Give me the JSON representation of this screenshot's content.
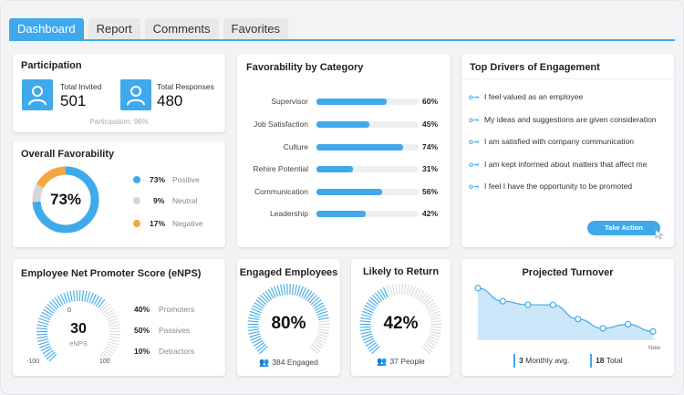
{
  "tabs": [
    {
      "label": "Dashboard",
      "active": true
    },
    {
      "label": "Report",
      "active": false
    },
    {
      "label": "Comments",
      "active": false
    },
    {
      "label": "Favorites",
      "active": false
    }
  ],
  "participation": {
    "title": "Participation",
    "invited_label": "Total Invited",
    "invited_value": "501",
    "responses_label": "Total Responses",
    "responses_value": "480",
    "footer": "Participation: 96%"
  },
  "favorability": {
    "title": "Overall Favorability",
    "center": "73%",
    "items": [
      {
        "value": "73%",
        "label": "Positive",
        "color": "#3fa9ec",
        "fraction": 0.73
      },
      {
        "value": "9%",
        "label": "Neutral",
        "color": "#d6d6d6",
        "fraction": 0.09
      },
      {
        "value": "17%",
        "label": "Negative",
        "color": "#f4a640",
        "fraction": 0.17
      }
    ]
  },
  "category": {
    "title": "Favorability by Category",
    "rows": [
      {
        "label": "Supervisor",
        "value": "60%",
        "fraction": 0.6
      },
      {
        "label": "Job Satisfaction",
        "value": "45%",
        "fraction": 0.45
      },
      {
        "label": "Culture",
        "value": "74%",
        "fraction": 0.74
      },
      {
        "label": "Rehire Potential",
        "value": "31%",
        "fraction": 0.31
      },
      {
        "label": "Communication",
        "value": "56%",
        "fraction": 0.56
      },
      {
        "label": "Leadership",
        "value": "42%",
        "fraction": 0.42
      }
    ]
  },
  "drivers": {
    "title": "Top Drivers of Engagement",
    "items": [
      "I feel valued as an employee",
      "My ideas and suggestions are given consideration",
      "I am satisfied with company communication",
      "I am kept informed about matters that affect me",
      "I feel I have the opportunity to be promoted"
    ],
    "button": "Take Action"
  },
  "enps": {
    "title": "Employee Net Promoter Score (eNPS)",
    "zero": "0",
    "value": "30",
    "sub": "eNPS",
    "min": "-100",
    "max": "100",
    "fraction": 0.65,
    "legend": [
      {
        "value": "40%",
        "label": "Promoters"
      },
      {
        "value": "50%",
        "label": "Passives"
      },
      {
        "value": "10%",
        "label": "Detractors"
      }
    ]
  },
  "engaged": {
    "title": "Engaged Employees",
    "value": "80%",
    "fraction": 0.8,
    "footer": "384 Engaged"
  },
  "likely": {
    "title": "Likely to Return",
    "value": "42%",
    "fraction": 0.42,
    "footer": "37 People"
  },
  "turnover": {
    "title": "Projected Turnover",
    "now_label": "Now",
    "monthly_value": "3",
    "monthly_label": "Monthly avg.",
    "total_value": "18",
    "total_label": "Total",
    "chart_data": {
      "type": "area",
      "title": "Projected Turnover",
      "values": [
        9.8,
        7.3,
        6.6,
        6.6,
        3.9,
        2.1,
        2.9,
        1.5
      ],
      "ylim": [
        0,
        11
      ],
      "xlabel": "Now",
      "grid": false,
      "color": "#3fa9ec"
    }
  }
}
